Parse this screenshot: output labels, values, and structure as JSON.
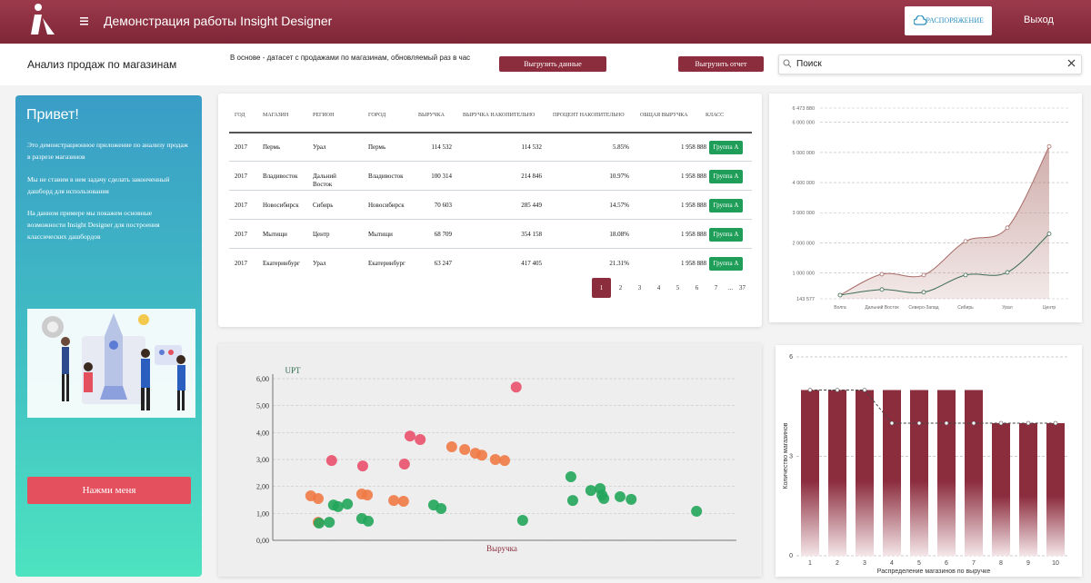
{
  "header": {
    "title": "Демонстрация работы Insight Designer",
    "order_button": "РАСПОРЯЖЕНИЕ",
    "logout": "Выход"
  },
  "toolbar": {
    "page_title": "Анализ продаж по магазинам",
    "description": "В основе - датасет с продажами по магазинам, обновляемый раз в час",
    "export_data": "Выгрузить данные",
    "export_report": "Выгрузить отчет",
    "search_placeholder": "Поиск"
  },
  "welcome": {
    "title": "Привет!",
    "paragraphs": [
      "Это демонстрационное приложение по анализу продаж в разрезе магазинов",
      "Мы не ставим в нем задачу сделать законченный дашборд для использования",
      "На данном примере мы покажем основные возможности Insight Designer для построения классических дашбордов"
    ],
    "button": "Нажми меня"
  },
  "table": {
    "columns": [
      "ГОД",
      "МАГАЗИН",
      "РЕГИОН",
      "ГОРОД",
      "ВЫРУЧКА",
      "ВЫРУЧКА НАКОПИТЕЛЬНО",
      "ПРОЦЕНТ НАКОПИТЕЛЬНО",
      "ОБЩАЯ ВЫРУЧКА",
      "КЛАСС"
    ],
    "rows": [
      [
        "2017",
        "Пермь",
        "Урал",
        "Пермь",
        "114 532",
        "114 532",
        "5.85%",
        "1 958 888",
        "Группа А"
      ],
      [
        "2017",
        "Владивосток",
        "Дальний Восток",
        "Владивосток",
        "100 314",
        "214 846",
        "10.97%",
        "1 958 888",
        "Группа А"
      ],
      [
        "2017",
        "Новосибирск",
        "Сибирь",
        "Новосибирск",
        "70 603",
        "285 449",
        "14.57%",
        "1 958 888",
        "Группа А"
      ],
      [
        "2017",
        "Мытищи",
        "Центр",
        "Мытищи",
        "68 709",
        "354 158",
        "18.08%",
        "1 958 888",
        "Группа А"
      ],
      [
        "2017",
        "Екатеринбург",
        "Урал",
        "Екатеринбург",
        "63 247",
        "417 405",
        "21.31%",
        "1 958 888",
        "Группа А"
      ]
    ],
    "pagination": [
      "1",
      "2",
      "3",
      "4",
      "5",
      "6",
      "7",
      "...",
      "37"
    ]
  },
  "area_chart": {
    "type": "area",
    "categories": [
      "Волга",
      "Дальний Восток",
      "Северо-Запад",
      "Сибирь",
      "Урал",
      "Центр"
    ],
    "series": [
      {
        "color": "#a86b66",
        "values": [
          265000,
          960000,
          930000,
          2050000,
          2500000,
          5200000
        ]
      },
      {
        "color": "#3b6b52",
        "values": [
          265000,
          450000,
          360000,
          930000,
          1020000,
          2300000
        ]
      }
    ],
    "ylim": [
      143577,
      6473880
    ],
    "yticks": [
      {
        "value": 143577,
        "label": "143 577"
      },
      {
        "value": 1000000,
        "label": "1 000 000"
      },
      {
        "value": 2000000,
        "label": "2 000 000"
      },
      {
        "value": 3000000,
        "label": "3 000 000"
      },
      {
        "value": 4000000,
        "label": "4 000 000"
      },
      {
        "value": 5000000,
        "label": "5 000 000"
      },
      {
        "value": 6000000,
        "label": "6 000 000"
      },
      {
        "value": 6473880,
        "label": "6 473 880"
      }
    ],
    "grid": true
  },
  "scatter_chart": {
    "type": "scatter",
    "y_label": "UPT",
    "x_label": "Выручка",
    "xlim": [
      0,
      100
    ],
    "ylim": [
      0,
      6
    ],
    "yticks": [
      {
        "value": 0,
        "label": "0,00"
      },
      {
        "value": 1,
        "label": "1,00"
      },
      {
        "value": 2,
        "label": "2,00"
      },
      {
        "value": 3,
        "label": "3,00"
      },
      {
        "value": 4,
        "label": "4,00"
      },
      {
        "value": 5,
        "label": "5,00"
      },
      {
        "value": 6,
        "label": "6,00"
      }
    ],
    "grid": true,
    "series": [
      {
        "color": "#f07a45",
        "x": [
          8.2,
          9.8,
          9.8,
          19.2,
          20.4,
          26.1,
          28.2,
          38.6,
          41.4,
          43.7,
          45.1,
          48.0,
          50.0
        ],
        "values": [
          1.65,
          1.55,
          0.67,
          1.72,
          1.68,
          1.48,
          1.45,
          3.47,
          3.37,
          3.23,
          3.16,
          3.0,
          2.96
        ]
      },
      {
        "color": "#e8506a",
        "x": [
          12.7,
          19.4,
          28.4,
          29.6,
          31.8,
          52.5
        ],
        "values": [
          2.96,
          2.76,
          2.83,
          3.87,
          3.74,
          5.69
        ]
      },
      {
        "color": "#22a55b",
        "x": [
          10.0,
          12.2,
          13.1,
          14.1,
          16.1,
          19.2,
          20.6,
          34.7,
          36.3,
          53.9,
          64.3,
          64.7,
          68.6,
          70.6,
          71.0,
          71.4,
          74.9,
          77.3,
          91.4
        ],
        "values": [
          0.64,
          0.67,
          1.31,
          1.25,
          1.35,
          0.81,
          0.71,
          1.31,
          1.18,
          0.74,
          2.36,
          1.48,
          1.85,
          1.92,
          1.68,
          1.55,
          1.62,
          1.52,
          1.08
        ]
      }
    ]
  },
  "bar_chart": {
    "type": "bar",
    "y_label": "Количество магазинов",
    "x_label": "Распределение магазинов по выручке",
    "categories": [
      "1",
      "2",
      "3",
      "4",
      "5",
      "6",
      "7",
      "8",
      "9",
      "10"
    ],
    "series": [
      {
        "type": "bar",
        "color": "#8c2d3e",
        "values": [
          5,
          5,
          5,
          5,
          5,
          5,
          5,
          4,
          4,
          4
        ]
      },
      {
        "type": "line",
        "color": "#444444",
        "values": [
          5,
          5,
          5,
          4,
          4,
          4,
          4,
          4,
          4,
          4
        ]
      }
    ],
    "ylim": [
      0,
      6
    ],
    "yticks": [
      0,
      3,
      6
    ],
    "grid": true
  }
}
